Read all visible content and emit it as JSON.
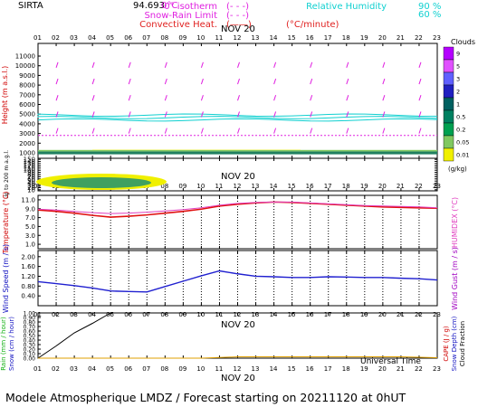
{
  "header": {
    "site": "SIRTA",
    "coords": "94.693",
    "coords_overlay": "0°C",
    "legend_left": [
      {
        "text": "0° isotherm",
        "color": "#e020e0",
        "key": "(- - -)"
      },
      {
        "text": "Snow-Rain Limit",
        "color": "#e020e0",
        "key": "(- - -)"
      },
      {
        "text": "Convective Heat.",
        "color": "#e0201f",
        "key": "(——)",
        "unit": "(°C/minute)"
      }
    ],
    "legend_right": [
      {
        "text": "Relative Humidity",
        "value": "90 %",
        "color": "#10d0d0"
      },
      {
        "text": "",
        "value": "60 %",
        "color": "#10d0d0"
      }
    ]
  },
  "hours": [
    "01",
    "02",
    "03",
    "04",
    "05",
    "06",
    "07",
    "08",
    "09",
    "10",
    "11",
    "12",
    "13",
    "14",
    "15",
    "16",
    "17",
    "18",
    "19",
    "20",
    "21",
    "22",
    "23"
  ],
  "day_label": "NOV 20",
  "footer": "Modele Atmospherique LMDZ / Forecast starting on 20211120 at 0hUT",
  "universal_time_label": "Universal Time",
  "chart_data": [
    {
      "type": "heatmap",
      "panel": "clouds-upper",
      "ylabel": "Height (m a.s.l.)",
      "yticks": [
        "11000",
        "10000",
        "9000",
        "8000",
        "7000",
        "6000",
        "5000",
        "4000",
        "3000",
        "2000",
        "1000"
      ],
      "colorbar_title": "Clouds",
      "colorbar_unit": "(g/kg)",
      "colorbar_ticks": [
        "9",
        "5",
        "3",
        "2",
        "1",
        "0.5",
        "0.2",
        "0.05",
        "0.01"
      ],
      "colorbar_colors": [
        "#b400ff",
        "#e050ff",
        "#6060ff",
        "#2020c0",
        "#006060",
        "#008060",
        "#00a050",
        "#80c860",
        "#f0f000"
      ],
      "isotherm_0c_height_m": 2800,
      "rh_contour_labels": [
        "90",
        "60"
      ]
    },
    {
      "type": "heatmap",
      "panel": "clouds-lower",
      "ylabel": "Up to 200 m a.g.l.",
      "yticks": [
        "150",
        "140",
        "130",
        "120",
        "110",
        "100",
        "90",
        "80",
        "70",
        "60",
        "50",
        "40",
        "30",
        "20",
        "10"
      ]
    },
    {
      "type": "line",
      "panel": "temperature",
      "ylabel": "Temperature (°C)",
      "ylabel_right": "HUMIDEX (°C)",
      "yticks": [
        "11.0",
        "9.0",
        "7.0",
        "5.0",
        "3.0",
        "1.0"
      ],
      "ylim": [
        0,
        12
      ],
      "x": [
        1,
        2,
        3,
        4,
        5,
        6,
        7,
        8,
        9,
        10,
        11,
        12,
        13,
        14,
        15,
        16,
        17,
        18,
        19,
        20,
        21,
        22,
        23
      ],
      "series": [
        {
          "color": "#e01010",
          "values": [
            8.7,
            8.4,
            8.0,
            7.5,
            7.1,
            7.3,
            7.6,
            8.0,
            8.4,
            8.9,
            9.6,
            10.0,
            10.3,
            10.5,
            10.4,
            10.2,
            10.0,
            9.8,
            9.6,
            9.4,
            9.3,
            9.2,
            9.1
          ]
        },
        {
          "color": "#e040c0",
          "values": [
            8.9,
            8.7,
            8.4,
            8.1,
            7.9,
            8.0,
            8.2,
            8.5,
            8.8,
            9.2,
            9.8,
            10.2,
            10.4,
            10.5,
            10.5,
            10.3,
            10.1,
            9.9,
            9.7,
            9.6,
            9.5,
            9.4,
            9.2
          ]
        }
      ]
    },
    {
      "type": "line",
      "panel": "wind",
      "ylabel": "Wind Speed (m / s)",
      "ylabel_right": "Wind Gust (m / s)",
      "yticks": [
        "2.00",
        "1.60",
        "1.20",
        "0.80",
        "0.40"
      ],
      "ylim": [
        0,
        2.25
      ],
      "x": [
        1,
        2,
        3,
        4,
        5,
        6,
        7,
        8,
        9,
        10,
        11,
        12,
        13,
        14,
        15,
        16,
        17,
        18,
        19,
        20,
        21,
        22,
        23
      ],
      "series": [
        {
          "color": "#2020d0",
          "values": [
            0.98,
            0.9,
            0.82,
            0.72,
            0.6,
            0.58,
            0.56,
            0.78,
            1.0,
            1.22,
            1.42,
            1.3,
            1.2,
            1.18,
            1.15,
            1.15,
            1.18,
            1.17,
            1.15,
            1.15,
            1.12,
            1.1,
            1.05
          ]
        }
      ]
    },
    {
      "type": "line",
      "panel": "precipitation",
      "ylabel_left": [
        "Rain (mm / hour)",
        "Snow (cm / hour)"
      ],
      "ylabel_right": [
        "CAPE (J / g)",
        "Snow Depth (cm)",
        "Cloud Fraction"
      ],
      "yticks": [
        "1.00",
        "0.90",
        "0.80",
        "0.70",
        "0.60",
        "0.50",
        "0.40",
        "0.30",
        "0.20",
        "0.10",
        "0.00"
      ],
      "ylim": [
        0,
        1
      ],
      "x": [
        1,
        2,
        3,
        4,
        5,
        6,
        7,
        8,
        9,
        10,
        11,
        12,
        13,
        14,
        15,
        16,
        17,
        18,
        19,
        20,
        21,
        22,
        23
      ],
      "series": [
        {
          "color": "#000000",
          "values": [
            0.0,
            0.27,
            0.56,
            0.77,
            1.0,
            null,
            null,
            null,
            null,
            null,
            null,
            null,
            null,
            null,
            null,
            null,
            null,
            null,
            null,
            null,
            null,
            null,
            null
          ]
        },
        {
          "color": "#e0a000",
          "values": [
            0,
            0,
            0,
            0,
            0,
            0,
            0,
            0,
            0,
            0,
            0.015,
            0.03,
            0.03,
            0.03,
            0.03,
            0.03,
            0.03,
            0.03,
            0.03,
            0.03,
            0.03,
            0.02,
            0.01
          ]
        }
      ]
    }
  ]
}
